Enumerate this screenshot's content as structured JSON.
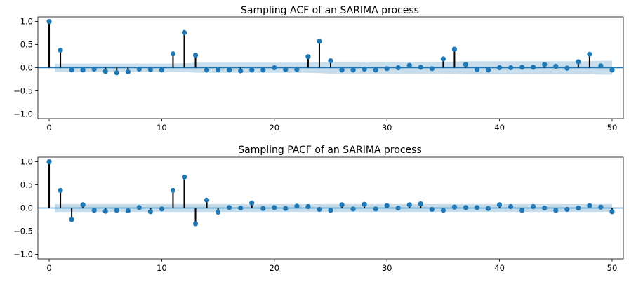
{
  "colors": {
    "marker": "#1f77b4",
    "stem": "#000000",
    "band": "#1f77b4",
    "baseline": "#1f77b4",
    "axes": "#000000",
    "background": "#ffffff"
  },
  "chart_data": [
    {
      "type": "stem",
      "title": "Sampling ACF of an SARIMA process",
      "xlabel": "",
      "ylabel": "",
      "xlim": [
        -1,
        51
      ],
      "ylim": [
        -1.1,
        1.1
      ],
      "xticks": [
        0,
        10,
        20,
        30,
        40,
        50
      ],
      "xtick_labels": [
        "0",
        "10",
        "20",
        "30",
        "40",
        "50"
      ],
      "yticks": [
        1.0,
        0.5,
        0.0,
        -0.5,
        -1.0
      ],
      "ytick_labels": [
        "1.0",
        "0.5",
        "0.0",
        "−0.5",
        "−1.0"
      ],
      "lags": [
        0,
        1,
        2,
        3,
        4,
        5,
        6,
        7,
        8,
        9,
        10,
        11,
        12,
        13,
        14,
        15,
        16,
        17,
        18,
        19,
        20,
        21,
        22,
        23,
        24,
        25,
        26,
        27,
        28,
        29,
        30,
        31,
        32,
        33,
        34,
        35,
        36,
        37,
        38,
        39,
        40,
        41,
        42,
        43,
        44,
        45,
        46,
        47,
        48,
        49,
        50
      ],
      "values": [
        1.0,
        0.38,
        -0.05,
        -0.05,
        -0.03,
        -0.08,
        -0.11,
        -0.09,
        -0.03,
        -0.04,
        -0.05,
        0.3,
        0.76,
        0.27,
        -0.05,
        -0.05,
        -0.05,
        -0.07,
        -0.05,
        -0.05,
        0.0,
        -0.04,
        -0.04,
        0.24,
        0.57,
        0.15,
        -0.05,
        -0.05,
        -0.03,
        -0.05,
        -0.02,
        0.0,
        0.05,
        0.01,
        -0.02,
        0.19,
        0.4,
        0.07,
        -0.04,
        -0.05,
        0.0,
        0.0,
        0.01,
        0.01,
        0.07,
        0.03,
        -0.01,
        0.13,
        0.29,
        0.04,
        -0.05
      ],
      "confidence_band": [
        0.085,
        0.087,
        0.09,
        0.09,
        0.09,
        0.09,
        0.09,
        0.09,
        0.09,
        0.09,
        0.09,
        0.09,
        0.095,
        0.108,
        0.11,
        0.11,
        0.11,
        0.11,
        0.11,
        0.11,
        0.11,
        0.11,
        0.11,
        0.11,
        0.118,
        0.13,
        0.13,
        0.13,
        0.13,
        0.13,
        0.13,
        0.13,
        0.13,
        0.13,
        0.13,
        0.13,
        0.135,
        0.14,
        0.14,
        0.14,
        0.14,
        0.14,
        0.14,
        0.14,
        0.14,
        0.14,
        0.14,
        0.14,
        0.14,
        0.15,
        0.15
      ]
    },
    {
      "type": "stem",
      "title": "Sampling PACF of an SARIMA process",
      "xlabel": "",
      "ylabel": "",
      "xlim": [
        -1,
        51
      ],
      "ylim": [
        -1.1,
        1.1
      ],
      "xticks": [
        0,
        10,
        20,
        30,
        40,
        50
      ],
      "xtick_labels": [
        "0",
        "10",
        "20",
        "30",
        "40",
        "50"
      ],
      "yticks": [
        1.0,
        0.5,
        0.0,
        -0.5,
        -1.0
      ],
      "ytick_labels": [
        "1.0",
        "0.5",
        "0.0",
        "−0.5",
        "−1.0"
      ],
      "lags": [
        0,
        1,
        2,
        3,
        4,
        5,
        6,
        7,
        8,
        9,
        10,
        11,
        12,
        13,
        14,
        15,
        16,
        17,
        18,
        19,
        20,
        21,
        22,
        23,
        24,
        25,
        26,
        27,
        28,
        29,
        30,
        31,
        32,
        33,
        34,
        35,
        36,
        37,
        38,
        39,
        40,
        41,
        42,
        43,
        44,
        45,
        46,
        47,
        48,
        49,
        50
      ],
      "values": [
        1.0,
        0.38,
        -0.25,
        0.07,
        -0.05,
        -0.07,
        -0.05,
        -0.06,
        0.01,
        -0.08,
        -0.02,
        0.38,
        0.67,
        -0.34,
        0.17,
        -0.09,
        0.01,
        0.0,
        0.11,
        -0.01,
        0.01,
        -0.01,
        0.04,
        0.03,
        -0.03,
        -0.05,
        0.07,
        -0.02,
        0.08,
        -0.02,
        0.05,
        0.0,
        0.07,
        0.09,
        -0.03,
        -0.05,
        0.02,
        0.01,
        0.01,
        -0.01,
        0.07,
        0.03,
        -0.05,
        0.03,
        0.0,
        -0.05,
        -0.03,
        0.0,
        0.05,
        0.02,
        -0.08
      ],
      "confidence_band": [
        0.085,
        0.085,
        0.085,
        0.085,
        0.085,
        0.085,
        0.085,
        0.085,
        0.085,
        0.085,
        0.085,
        0.085,
        0.085,
        0.085,
        0.085,
        0.085,
        0.085,
        0.085,
        0.085,
        0.085,
        0.085,
        0.085,
        0.085,
        0.085,
        0.085,
        0.085,
        0.085,
        0.085,
        0.085,
        0.085,
        0.085,
        0.085,
        0.085,
        0.085,
        0.085,
        0.085,
        0.085,
        0.085,
        0.085,
        0.085,
        0.085,
        0.085,
        0.085,
        0.085,
        0.085,
        0.085,
        0.085,
        0.085,
        0.085,
        0.085,
        0.085
      ]
    }
  ]
}
